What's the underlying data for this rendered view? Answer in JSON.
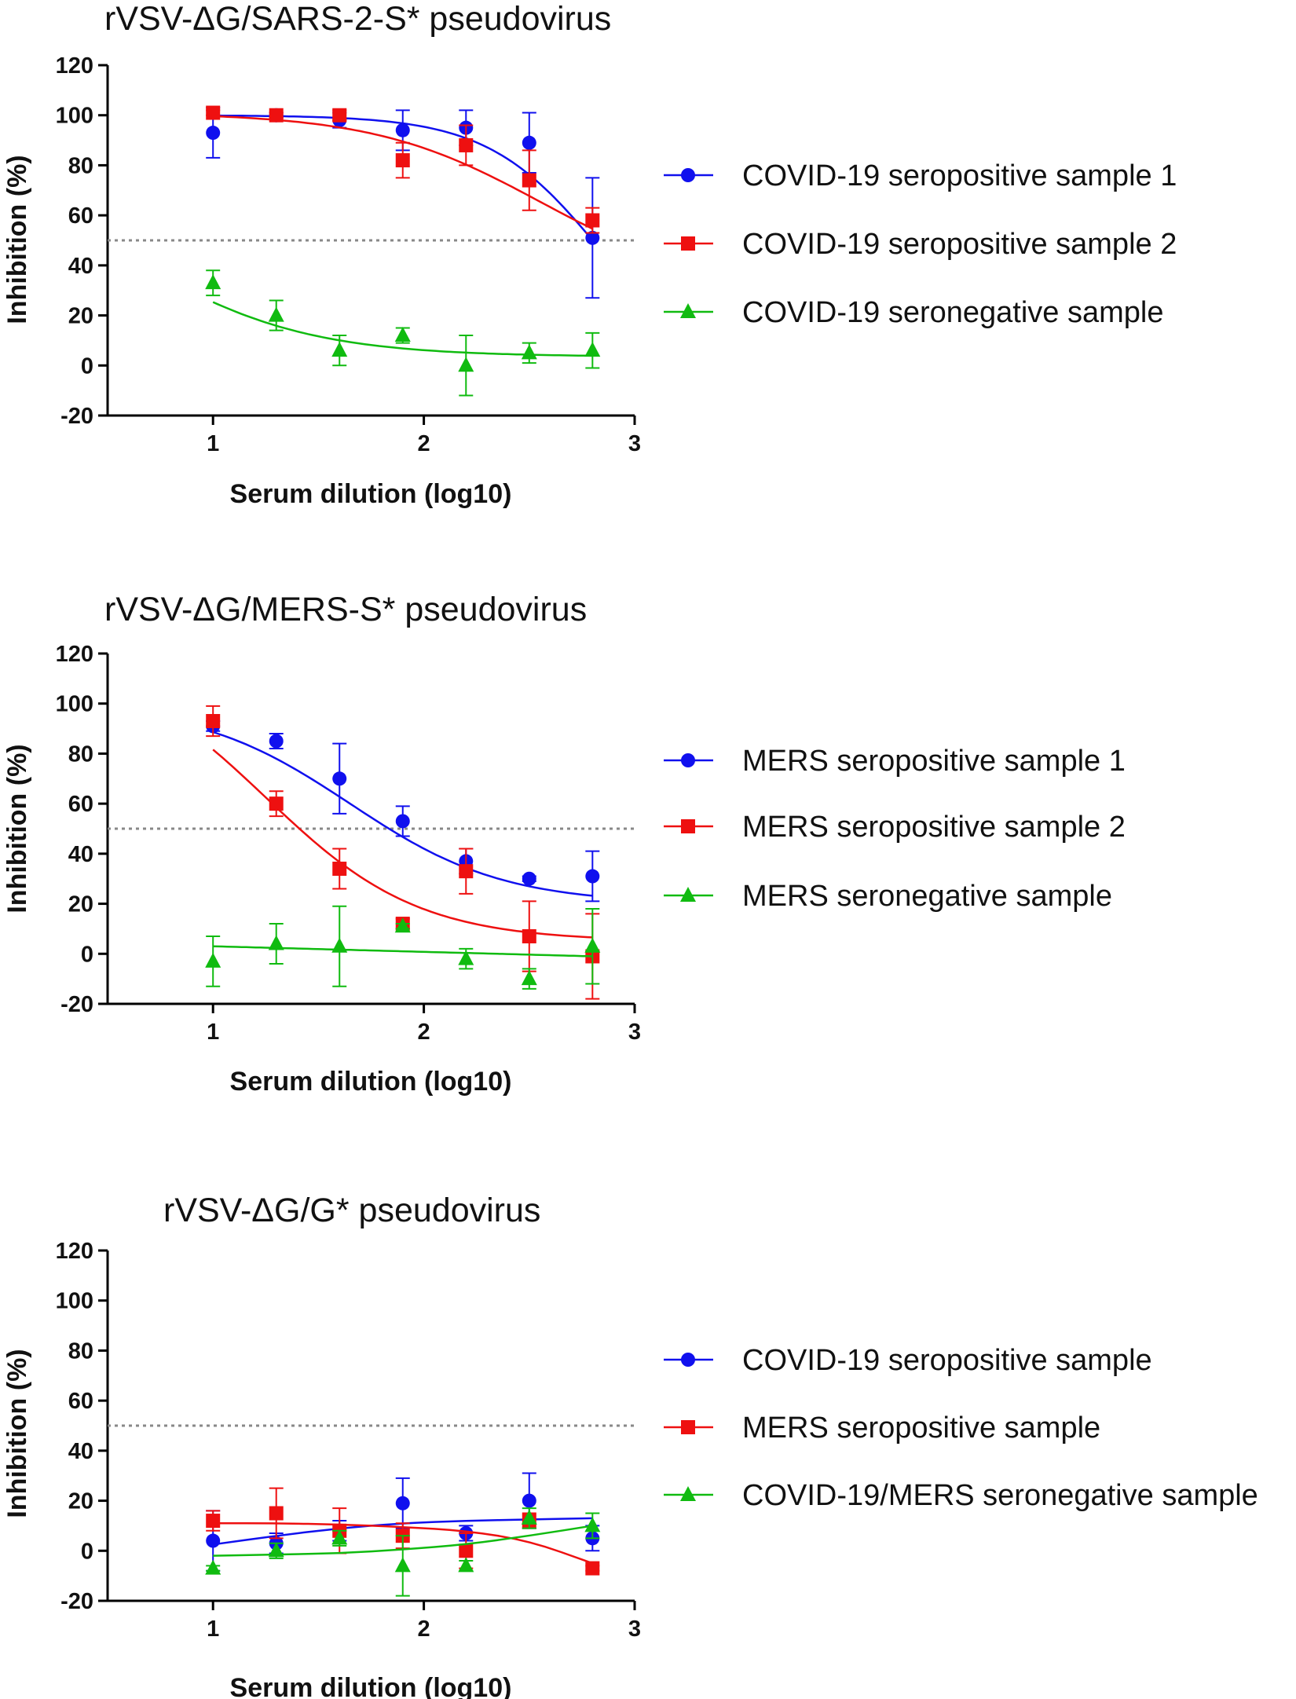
{
  "chart_data": [
    {
      "type": "scatter",
      "title": "rVSV-ΔG/SARS-2-S* pseudovirus",
      "xlabel": "Serum dilution (log10)",
      "ylabel": "Inhibition (%)",
      "xlim": [
        0.5,
        3.0
      ],
      "ylim": [
        -20,
        120
      ],
      "xticks": [
        1,
        2,
        3
      ],
      "yticks": [
        -20,
        0,
        20,
        40,
        60,
        80,
        100,
        120
      ],
      "reference_line_y": 50,
      "legend_position": "right",
      "x": [
        1.0,
        1.3,
        1.6,
        1.9,
        2.2,
        2.5,
        2.8
      ],
      "series": [
        {
          "name": "COVID-19 seropositive sample 1",
          "color": "#1010ee",
          "marker": "circle",
          "values": [
            93,
            100,
            98,
            94,
            95,
            89,
            51
          ],
          "errors": [
            10,
            1,
            3,
            8,
            7,
            12,
            24
          ],
          "fit": {
            "bottom": -10,
            "top": 100,
            "ec50_log": 2.85,
            "hill": 1.6
          }
        },
        {
          "name": "COVID-19 seropositive sample 2",
          "color": "#ee1010",
          "marker": "square",
          "values": [
            101,
            100,
            100,
            82,
            88,
            74,
            58
          ],
          "errors": [
            1,
            1,
            2,
            7,
            8,
            12,
            5
          ],
          "fit": {
            "bottom": 30,
            "top": 101,
            "ec50_log": 2.55,
            "hill": 1.1
          }
        },
        {
          "name": "COVID-19 seronegative sample",
          "color": "#10bb10",
          "marker": "triangle",
          "values": [
            33,
            20,
            6,
            12,
            0,
            5,
            6
          ],
          "errors": [
            5,
            6,
            6,
            3,
            12,
            4,
            7
          ],
          "fit": {
            "bottom": 3.5,
            "top": 80,
            "ec50_log": 0.62,
            "hill": 1.05
          }
        }
      ]
    },
    {
      "type": "scatter",
      "title": "rVSV-ΔG/MERS-S* pseudovirus",
      "xlabel": "Serum dilution (log10)",
      "ylabel": "Inhibition (%)",
      "xlim": [
        0.5,
        3.0
      ],
      "ylim": [
        -20,
        120
      ],
      "xticks": [
        1,
        2,
        3
      ],
      "yticks": [
        -20,
        0,
        20,
        40,
        60,
        80,
        100,
        120
      ],
      "reference_line_y": 50,
      "legend_position": "right",
      "x": [
        1.0,
        1.3,
        1.6,
        1.9,
        2.2,
        2.5,
        2.8
      ],
      "series": [
        {
          "name": "MERS seropositive sample 1",
          "color": "#1010ee",
          "marker": "circle",
          "values": [
            91,
            85,
            70,
            53,
            37,
            30,
            31
          ],
          "errors": [
            2,
            3,
            14,
            6,
            5,
            1,
            10
          ],
          "fit": {
            "bottom": 20,
            "top": 100,
            "ec50_log": 1.65,
            "hill": 1.2
          }
        },
        {
          "name": "MERS seropositive sample 2",
          "color": "#ee1010",
          "marker": "square",
          "values": [
            93,
            60,
            34,
            12,
            33,
            7,
            -1
          ],
          "errors": [
            6,
            5,
            8,
            2,
            9,
            14,
            17
          ],
          "fit": {
            "bottom": 5,
            "top": 120,
            "ec50_log": 1.25,
            "hill": 1.2
          }
        },
        {
          "name": "MERS seronegative sample",
          "color": "#10bb10",
          "marker": "triangle",
          "values": [
            -3,
            4,
            3,
            11,
            -2,
            -10,
            3
          ],
          "errors": [
            10,
            8,
            16,
            1,
            4,
            4,
            15
          ],
          "fit": {
            "type": "linear",
            "y0": 3,
            "y1": -1
          }
        }
      ]
    },
    {
      "type": "scatter",
      "title": "rVSV-ΔG/G* pseudovirus",
      "xlabel": "Serum dilution (log10)",
      "ylabel": "Inhibition (%)",
      "xlim": [
        0.5,
        3.0
      ],
      "ylim": [
        -20,
        120
      ],
      "xticks": [
        1,
        2,
        3
      ],
      "yticks": [
        -20,
        0,
        20,
        40,
        60,
        80,
        100,
        120
      ],
      "reference_line_y": 50,
      "legend_position": "right",
      "x": [
        1.0,
        1.3,
        1.6,
        1.9,
        2.2,
        2.5,
        2.8
      ],
      "series": [
        {
          "name": "COVID-19 seropositive sample",
          "color": "#1010ee",
          "marker": "circle",
          "values": [
            4,
            3,
            8,
            19,
            7,
            20,
            5
          ],
          "errors": [
            12,
            4,
            4,
            10,
            3,
            11,
            5
          ],
          "fit": {
            "type": "points",
            "y": [
              2.5,
              6,
              9,
              11,
              12,
              12.5,
              13
            ]
          }
        },
        {
          "name": "MERS seropositive sample",
          "color": "#ee1010",
          "marker": "square",
          "values": [
            12,
            15,
            8,
            6,
            0,
            12,
            -7
          ],
          "errors": [
            4,
            10,
            9,
            5,
            7,
            3,
            1
          ],
          "fit": {
            "type": "points",
            "y": [
              11,
              11,
              10.5,
              9.5,
              8,
              4,
              -5
            ]
          }
        },
        {
          "name": "COVID-19/MERS seronegative sample",
          "color": "#10bb10",
          "marker": "triangle",
          "values": [
            -7,
            0,
            5,
            -6,
            -6,
            13,
            10
          ],
          "errors": [
            1,
            3,
            3,
            12,
            2,
            4,
            5
          ],
          "fit": {
            "type": "points",
            "y": [
              -2,
              -1.5,
              -1,
              0.5,
              2.5,
              6,
              10
            ]
          }
        }
      ]
    }
  ]
}
